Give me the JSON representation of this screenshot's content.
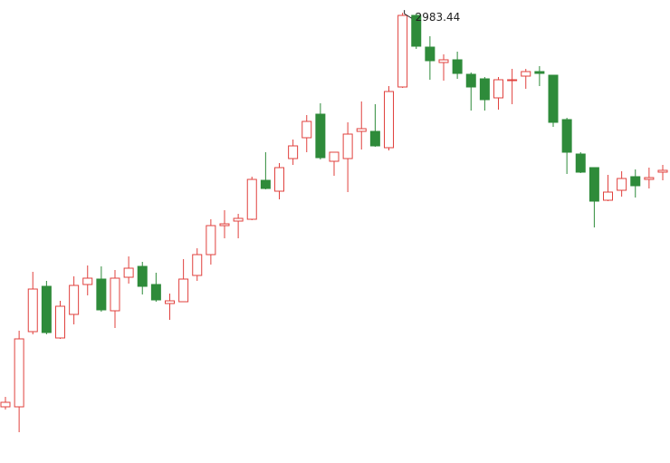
{
  "chart_data": {
    "type": "candlestick",
    "high_label": "2983.44",
    "up_color": "#e0413e",
    "down_color": "#2e8b3a",
    "ylim": [
      2735,
      2990.5
    ],
    "open": [
      2766,
      2766,
      2807.5,
      2832.5,
      2804,
      2817,
      2833.5,
      2836.5,
      2819,
      2837.5,
      2843.5,
      2833.5,
      2823,
      2824,
      2838.5,
      2850,
      2866,
      2868.5,
      2869.5,
      2891,
      2885,
      2903,
      2914.5,
      2927.5,
      2901.5,
      2903,
      2918,
      2918,
      2909,
      2942.5,
      2982,
      2964.5,
      2956,
      2957.5,
      2949.5,
      2947,
      2936.5,
      2946.5,
      2948.5,
      2951,
      2949,
      2924.5,
      2905.5,
      2898,
      2880,
      2885.5,
      2893,
      2891.5,
      2895.5
    ],
    "high": [
      2771.5,
      2808,
      2840.5,
      2835.5,
      2824.5,
      2838,
      2844,
      2843.5,
      2841.5,
      2849,
      2846,
      2840,
      2828.5,
      2847.5,
      2853.5,
      2869.5,
      2874.5,
      2872.5,
      2893,
      2906.5,
      2900.5,
      2913.5,
      2927,
      2933.5,
      2906.5,
      2923,
      2934.5,
      2933,
      2943,
      2983.44,
      2983,
      2970.5,
      2960.5,
      2962,
      2950.5,
      2948,
      2948,
      2952.5,
      2952.5,
      2954,
      2949,
      2925.5,
      2906.5,
      2898,
      2894,
      2896,
      2897,
      2898,
      2899.5
    ],
    "low": [
      2764.5,
      2752,
      2806,
      2806,
      2803.5,
      2811.5,
      2827.5,
      2818.5,
      2809.5,
      2834,
      2828,
      2824,
      2814,
      2824,
      2835.5,
      2844.5,
      2859,
      2859,
      2869,
      2886,
      2880.5,
      2899.5,
      2906.5,
      2902.5,
      2893.5,
      2884.5,
      2908,
      2909.5,
      2907.5,
      2942,
      2963.5,
      2946.5,
      2946,
      2947,
      2929.5,
      2929.5,
      2930,
      2933,
      2941.5,
      2943,
      2920.5,
      2894.5,
      2895,
      2865,
      2879.5,
      2882,
      2881.5,
      2886.5,
      2891
    ],
    "close": [
      2768.5,
      2803.5,
      2831,
      2807,
      2821.5,
      2833,
      2837,
      2819.5,
      2837,
      2842.5,
      2832.5,
      2825,
      2824.5,
      2836.5,
      2850,
      2866,
      2867,
      2870,
      2891.5,
      2886.5,
      2898,
      2910,
      2923.5,
      2903.5,
      2906.5,
      2916.5,
      2919.5,
      2910,
      2940,
      2982,
      2965,
      2957,
      2957.5,
      2950,
      2942.5,
      2935.5,
      2946.5,
      2946.5,
      2951,
      2950,
      2923,
      2906.5,
      2895.5,
      2879.5,
      2884.5,
      2892,
      2888,
      2892.5,
      2896.5
    ]
  }
}
